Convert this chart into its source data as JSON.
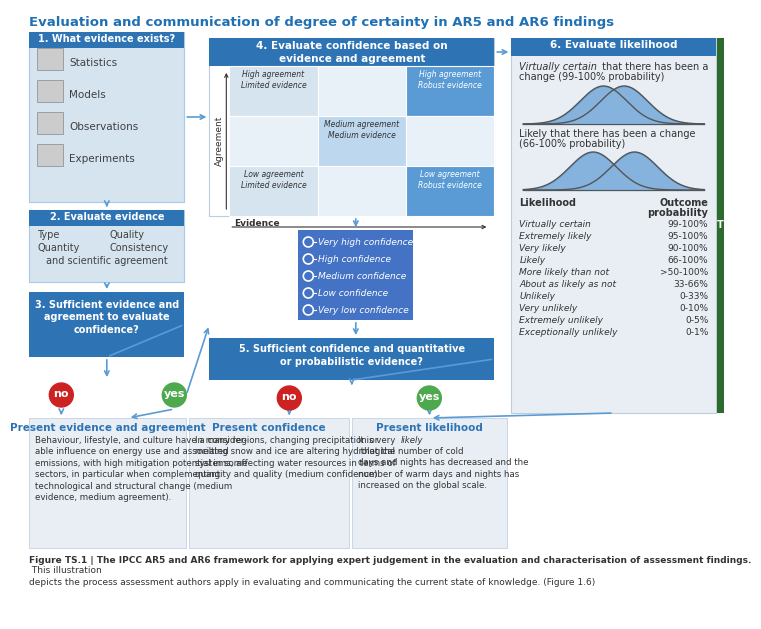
{
  "title": "Evaluation and communication of degree of certainty in AR5 and AR6 findings",
  "title_color": "#2070B4",
  "bg_color": "#FFFFFF",
  "box1_title": "1. What evidence exists?",
  "box1_items": [
    "Statistics",
    "Models",
    "Observations",
    "Experiments"
  ],
  "box2_title": "2. Evaluate evidence",
  "box3_title": "3. Sufficient evidence and\nagreement to evaluate\nconfidence?",
  "box4_title": "4. Evaluate confidence based on\nevidence and agreement",
  "box5_title": "5. Sufficient confidence and quantitative\nor probabilistic evidence?",
  "box5_items": [
    "Very high confidence",
    "High confidence",
    "Medium confidence",
    "Low confidence",
    "Very low confidence"
  ],
  "box6_title": "6. Evaluate likelihood",
  "box6_text1_italic": "Virtually certain",
  "box6_text1_rest": " that there has been a\nchange (99-100% probability)",
  "box6_text2": "Likely that there has been a change\n(66-100% probability)",
  "likelihood_labels": [
    "Virtually certain",
    "Extremely likely",
    "Very likely",
    "Likely",
    "More likely than not",
    "About as likely as not",
    "Unlikely",
    "Very unlikely",
    "Extremely unlikely",
    "Exceptionally unlikely"
  ],
  "likelihood_probs": [
    "99-100%",
    "95-100%",
    "90-100%",
    "66-100%",
    ">50-100%",
    "33-66%",
    "0-33%",
    "0-10%",
    "0-5%",
    "0-1%"
  ],
  "bottom_title1": "Present evidence and agreement",
  "bottom_text1": "Behaviour, lifestyle, and culture have a consider-\nable influence on energy use and associated\nemissions, with high mitigation potential in some\nsectors, in particular when complementing\ntechnological and structural change (medium\nevidence, medium agreement).",
  "bottom_title2": "Present confidence",
  "bottom_text2": "In many regions, changing precipitation or\nmelting snow and ice are altering hydrological\nsystems, affecting water resources in terms of\nquantity and quality (medium confidence).",
  "bottom_title3": "Present likelihood",
  "bottom_text3_pre": "It is very ",
  "bottom_text3_italic": "likely",
  "bottom_text3_post": " that the number of cold\ndays and nights has decreased and the\nnumber of warm days and nights has\nincreased on the global scale.",
  "caption_bold": "Figure TS.1 | The IPCC AR5 and AR6 framework for applying expert judgement in the evaluation and characterisation of assessment findings.",
  "caption_normal": " This illustration\ndepicts the process assessment authors apply in evaluating and communicating the current state of knowledge. (Figure 1.6)",
  "header_blue": "#2E74B5",
  "box1_bg": "#D6E4F0",
  "box1_border": "#A8C8E8",
  "box2_bg": "#D6E4F0",
  "box3_bg": "#2E74B5",
  "box4_bg": "#FFFFFF",
  "matrix_light": "#D6E4F0",
  "matrix_mid": "#ADC8E0",
  "matrix_dark": "#5B9BD5",
  "matrix_medium": "#BDD7EE",
  "conf_bg": "#4472C4",
  "box5_bg": "#2E74B5",
  "box6_bg": "#E8EEF4",
  "bottom_bg": "#E8EEF4",
  "bottom_border": "#C8D8E8",
  "green_btn": "#4EA84E",
  "red_btn": "#CC2222",
  "arrow_blue": "#5B9BD5",
  "right_tab": "#2D6A2D",
  "evidence_arrow": "#404040",
  "gray_text": "#404040"
}
